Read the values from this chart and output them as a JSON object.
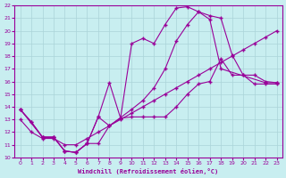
{
  "xlabel": "Windchill (Refroidissement éolien,°C)",
  "bg_color": "#c8eef0",
  "grid_color": "#aad4d8",
  "line_color": "#990099",
  "xlim": [
    -0.5,
    23.5
  ],
  "ylim": [
    10,
    22
  ],
  "xticks": [
    0,
    1,
    2,
    3,
    4,
    5,
    6,
    7,
    8,
    9,
    10,
    11,
    12,
    13,
    14,
    15,
    16,
    17,
    18,
    19,
    20,
    21,
    22,
    23
  ],
  "yticks": [
    10,
    11,
    12,
    13,
    14,
    15,
    16,
    17,
    18,
    19,
    20,
    21,
    22
  ],
  "line1_x": [
    0,
    1,
    2,
    3,
    4,
    5,
    6,
    7,
    8,
    9,
    10,
    11,
    12,
    13,
    14,
    15,
    16,
    17,
    18,
    19,
    20,
    21,
    22,
    23
  ],
  "line1_y": [
    13.8,
    12.8,
    11.6,
    11.6,
    10.5,
    10.4,
    11.1,
    13.2,
    12.5,
    13.1,
    13.2,
    13.2,
    13.2,
    13.2,
    14.0,
    15.0,
    15.8,
    16.0,
    17.8,
    16.5,
    16.5,
    15.8,
    15.8,
    15.8
  ],
  "line2_x": [
    0,
    2,
    3,
    4,
    5,
    6,
    7,
    8,
    9,
    10,
    11,
    12,
    13,
    14,
    15,
    16,
    17,
    18,
    22,
    23
  ],
  "line2_y": [
    13.8,
    11.6,
    11.6,
    10.5,
    10.4,
    11.1,
    13.2,
    15.9,
    13.1,
    19.0,
    19.4,
    19.0,
    20.5,
    21.8,
    21.9,
    21.5,
    20.9,
    17.0,
    15.9,
    15.9
  ],
  "line3_x": [
    0,
    1,
    2,
    3,
    4,
    5,
    6,
    7,
    8,
    10,
    11,
    12,
    13,
    14,
    15,
    16,
    17,
    18,
    19,
    20,
    21,
    22,
    23
  ],
  "line3_y": [
    13.8,
    12.8,
    11.6,
    11.6,
    10.5,
    10.4,
    11.1,
    11.1,
    12.5,
    13.8,
    14.5,
    15.5,
    17.0,
    19.2,
    20.5,
    21.5,
    21.2,
    21.0,
    18.1,
    16.5,
    16.5,
    16.0,
    15.9
  ],
  "line4_x": [
    0,
    1,
    2,
    3,
    4,
    5,
    6,
    7,
    8,
    9,
    10,
    11,
    12,
    13,
    14,
    15,
    16,
    17,
    18,
    19,
    20,
    21,
    22,
    23
  ],
  "line4_y": [
    13.0,
    12.0,
    11.5,
    11.5,
    11.0,
    11.0,
    11.5,
    12.0,
    12.5,
    13.0,
    13.5,
    14.0,
    14.5,
    15.0,
    15.5,
    16.0,
    16.5,
    17.0,
    17.5,
    18.0,
    18.5,
    19.0,
    19.5,
    20.0
  ]
}
